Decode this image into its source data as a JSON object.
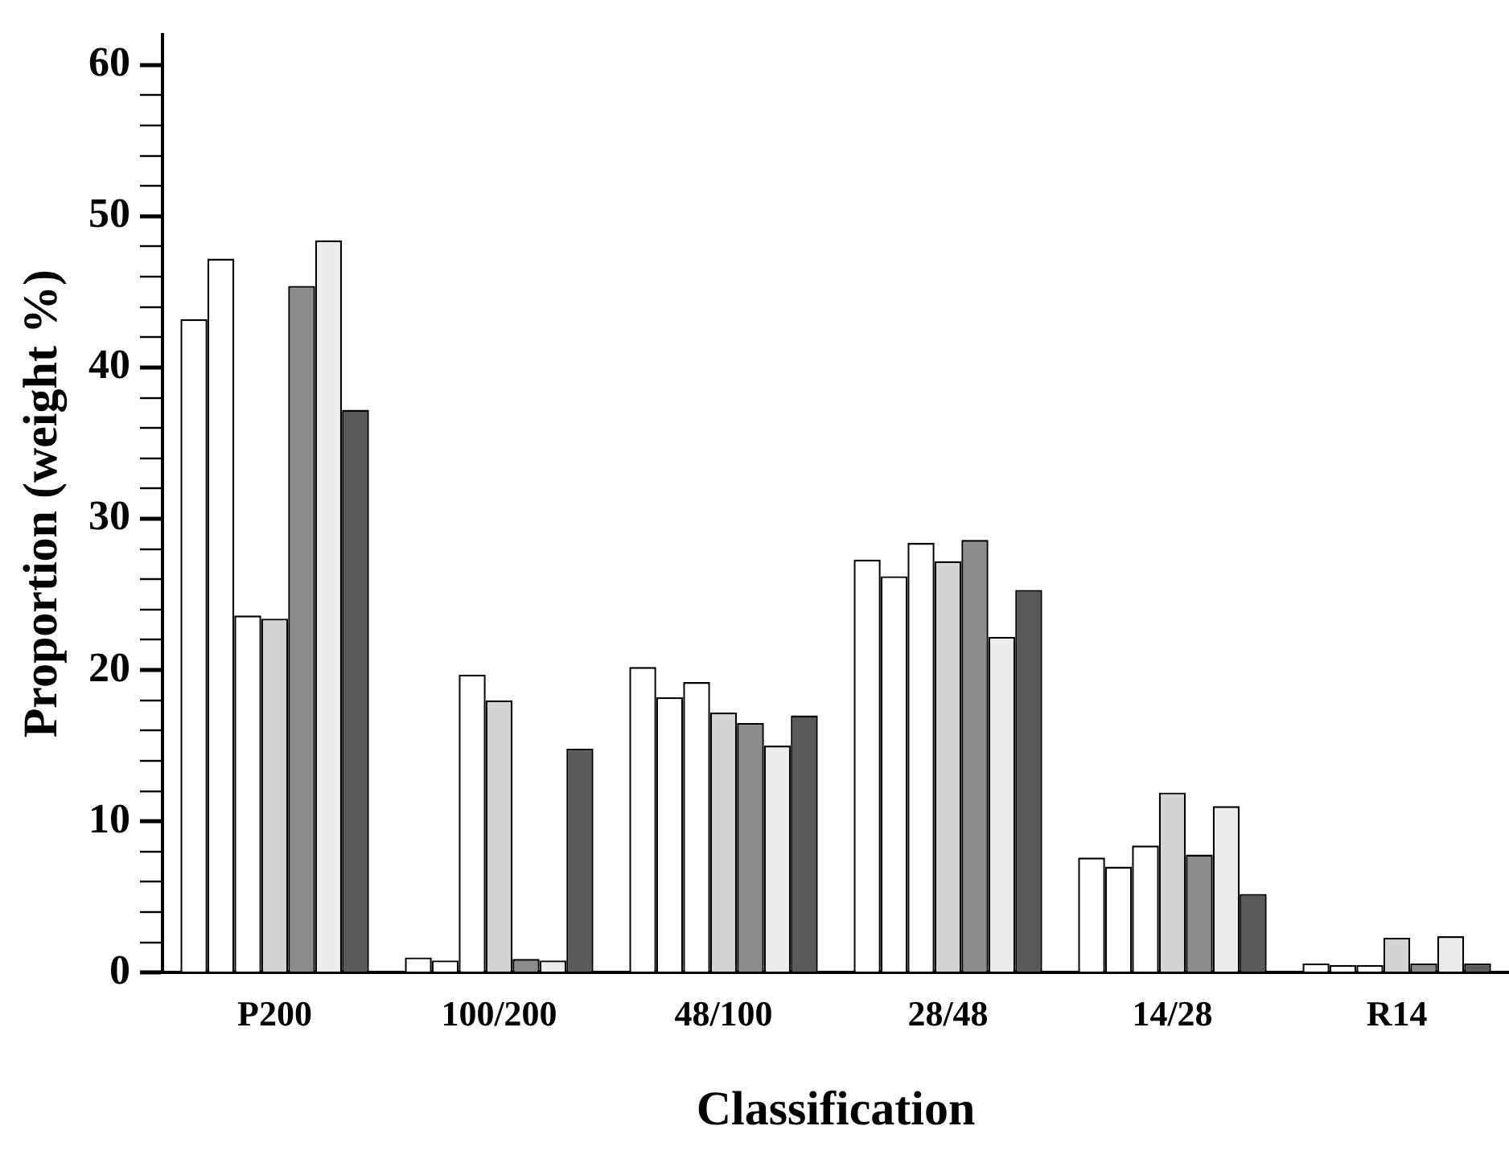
{
  "chart_data": {
    "type": "bar",
    "xlabel": "Classification",
    "ylabel": "Proportion (weight %)",
    "categories": [
      "P200",
      "100/200",
      "48/100",
      "28/48",
      "14/28",
      "R14"
    ],
    "series": [
      {
        "color": "#ffffff",
        "values": [
          43.2,
          1.0,
          20.2,
          27.3,
          7.6,
          0.6
        ]
      },
      {
        "color": "#ffffff",
        "values": [
          47.2,
          0.8,
          18.2,
          26.2,
          7.0,
          0.5
        ]
      },
      {
        "color": "#ffffff",
        "values": [
          23.6,
          19.7,
          19.2,
          28.4,
          8.4,
          0.5
        ]
      },
      {
        "color": "#d4d4d4",
        "values": [
          23.4,
          18.0,
          17.2,
          27.2,
          11.9,
          2.3
        ]
      },
      {
        "color": "#8c8c8c",
        "values": [
          45.4,
          0.9,
          16.5,
          28.6,
          7.8,
          0.6
        ]
      },
      {
        "color": "#ececec",
        "values": [
          48.4,
          0.8,
          15.0,
          22.2,
          11.0,
          2.4
        ]
      },
      {
        "color": "#5a5a5a",
        "values": [
          37.2,
          14.8,
          17.0,
          25.3,
          5.2,
          0.6
        ]
      }
    ],
    "ylim": [
      0,
      62
    ],
    "yticks": [
      0,
      {
        "value": 2,
        "label": null
      },
      {
        "value": 4,
        "label": null
      },
      {
        "value": 6,
        "label": null
      },
      {
        "value": 8,
        "label": null
      },
      10,
      {
        "value": 12,
        "label": null
      },
      {
        "value": 14,
        "label": null
      },
      {
        "value": 16,
        "label": null
      },
      {
        "value": 18,
        "label": null
      },
      20,
      {
        "value": 22,
        "label": null
      },
      {
        "value": 24,
        "label": null
      },
      {
        "value": 26,
        "label": null
      },
      {
        "value": 28,
        "label": null
      },
      30,
      {
        "value": 32,
        "label": null
      },
      {
        "value": 34,
        "label": null
      },
      {
        "value": 36,
        "label": null
      },
      {
        "value": 38,
        "label": null
      },
      40,
      {
        "value": 42,
        "label": null
      },
      {
        "value": 44,
        "label": null
      },
      {
        "value": 46,
        "label": null
      },
      {
        "value": 48,
        "label": null
      },
      50,
      {
        "value": 52,
        "label": null
      },
      {
        "value": 54,
        "label": null
      },
      {
        "value": 56,
        "label": null
      },
      {
        "value": 58,
        "label": null
      },
      60
    ],
    "grid": false,
    "legend": false
  }
}
